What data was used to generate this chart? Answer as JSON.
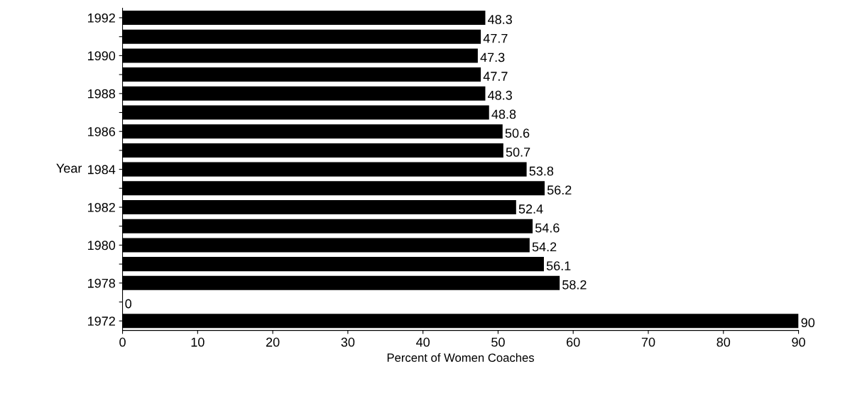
{
  "chart_data": {
    "type": "bar",
    "orientation": "horizontal",
    "xlabel": "Percent of Women Coaches",
    "ylabel": "Year",
    "categories": [
      "1992",
      null,
      "1990",
      null,
      "1988",
      null,
      "1986",
      null,
      "1984",
      null,
      "1982",
      null,
      "1980",
      null,
      "1978",
      null,
      "1972"
    ],
    "values": [
      48.3,
      47.7,
      47.3,
      47.7,
      48.3,
      48.8,
      50.6,
      50.7,
      53.8,
      56.2,
      52.4,
      54.6,
      54.2,
      56.1,
      58.2,
      0,
      90
    ],
    "color": "#000000",
    "xlim": [
      0,
      90
    ],
    "xticks": [
      0,
      10,
      20,
      30,
      40,
      50,
      60,
      70,
      80,
      90
    ],
    "data_labels": true,
    "grid": false,
    "legend": false
  }
}
